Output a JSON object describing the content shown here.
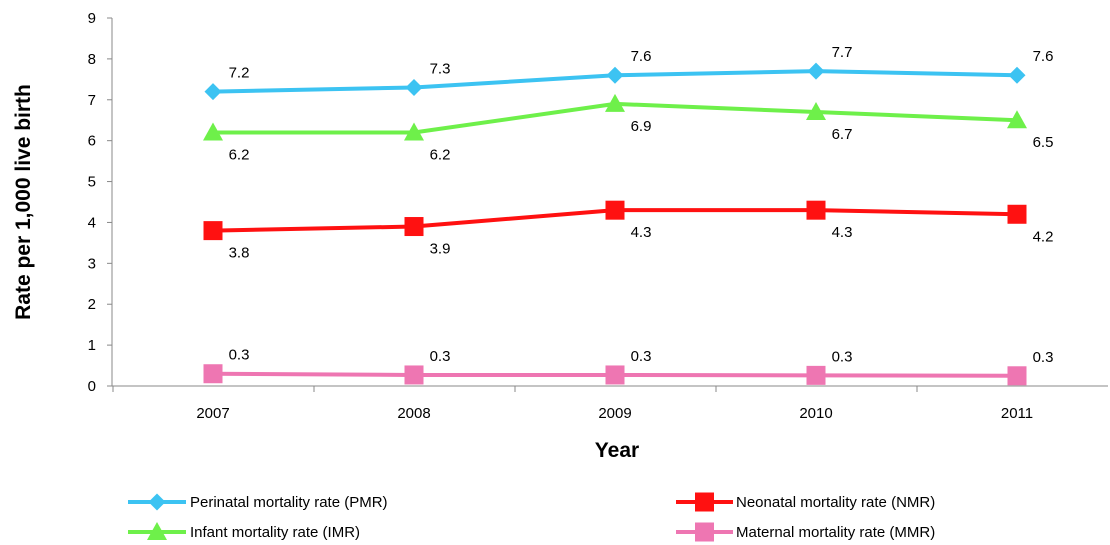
{
  "chart_data": {
    "type": "line",
    "title": "",
    "xlabel": "Year",
    "ylabel": "Rate per 1,000 live birth",
    "categories": [
      "2007",
      "2008",
      "2009",
      "2010",
      "2011"
    ],
    "ylim": [
      0,
      9
    ],
    "y_ticks": [
      "0",
      "1",
      "2",
      "3",
      "4",
      "5",
      "6",
      "7",
      "8",
      "9"
    ],
    "grid": false,
    "legend_position": "bottom",
    "series": [
      {
        "name": "Perinatal mortality rate (PMR)",
        "values": [
          7.2,
          7.3,
          7.6,
          7.7,
          7.6
        ],
        "labels": [
          "7.2",
          "7.3",
          "7.6",
          "7.7",
          "7.6"
        ],
        "color": "#3cc3f2",
        "marker": "diamond",
        "label_position": "above"
      },
      {
        "name": "Infant mortality rate (IMR)",
        "values": [
          6.2,
          6.2,
          6.9,
          6.7,
          6.5
        ],
        "labels": [
          "6.2",
          "6.2",
          "6.9",
          "6.7",
          "6.5"
        ],
        "color": "#6ef04a",
        "marker": "triangle",
        "label_position": "below"
      },
      {
        "name": "Neonatal mortality rate (NMR)",
        "values": [
          3.8,
          3.9,
          4.3,
          4.3,
          4.2
        ],
        "labels": [
          "3.8",
          "3.9",
          "4.3",
          "4.3",
          "4.2"
        ],
        "color": "#ff1111",
        "marker": "square",
        "label_position": "below"
      },
      {
        "name": "Maternal mortality rate (MMR)",
        "values": [
          0.3,
          0.27,
          0.27,
          0.26,
          0.25
        ],
        "labels": [
          "0.3",
          "0.3",
          "0.3",
          "0.3",
          "0.3"
        ],
        "color": "#ee76b2",
        "marker": "square",
        "label_position": "above"
      }
    ]
  }
}
